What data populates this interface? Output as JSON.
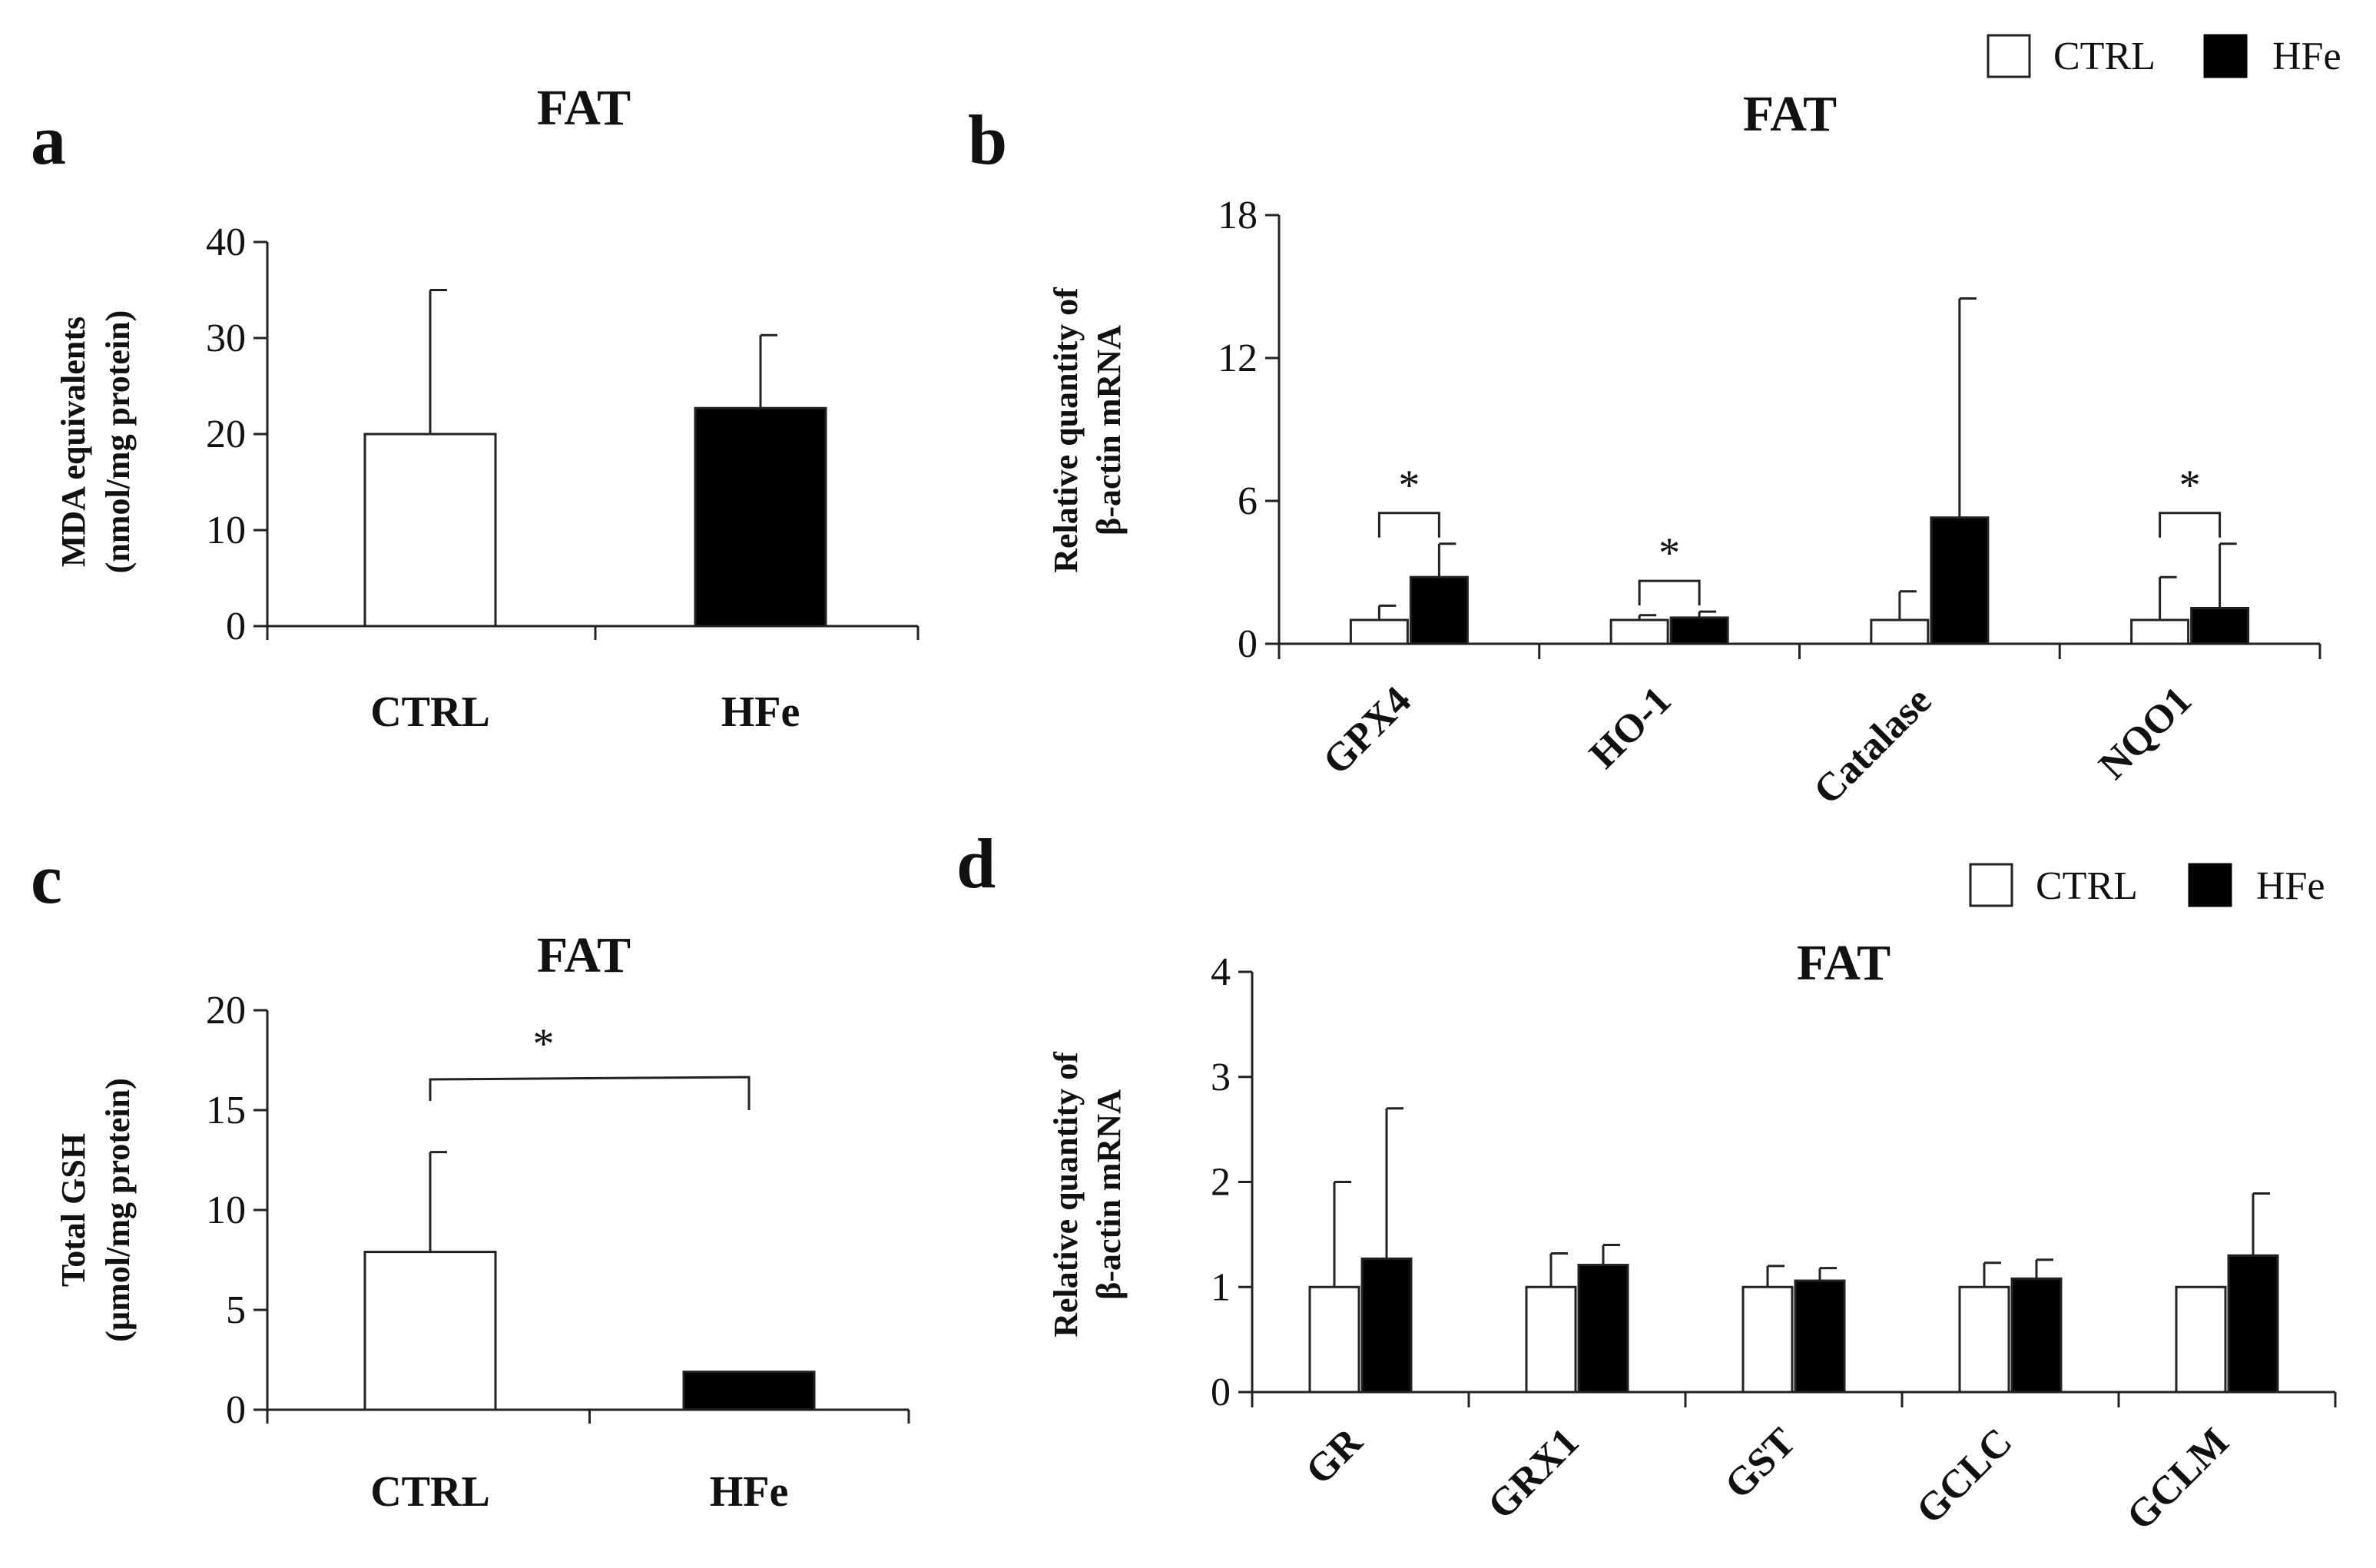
{
  "legend": {
    "ctrl": "CTRL",
    "hfe": "HFe"
  },
  "colors": {
    "ctrl": "#ffffff",
    "hfe": "#000000",
    "stroke": "#222222"
  },
  "chart_data": [
    {
      "id": "a",
      "panel_label": "a",
      "type": "bar",
      "title": "FAT",
      "ylabel_line1": "MDA equivalents",
      "ylabel_line2": "(nmol/mg protein)",
      "categories": [
        "CTRL",
        "HFe"
      ],
      "values": [
        20,
        22.7
      ],
      "errors": [
        15,
        7.6
      ],
      "colors": [
        "ctrl",
        "hfe"
      ],
      "ylim": [
        0,
        40
      ],
      "yticks": [
        0,
        10,
        20,
        30,
        40
      ],
      "significance": []
    },
    {
      "id": "b",
      "panel_label": "b",
      "type": "bar",
      "title": "FAT",
      "ylabel_line1": "Relative quantity of",
      "ylabel_line2": "β-actin mRNA",
      "categories": [
        "GPX4",
        "HO-1",
        "Catalase",
        "NQO1"
      ],
      "series": [
        {
          "name": "CTRL",
          "values": [
            1,
            1,
            1,
            1
          ],
          "errors": [
            0.6,
            0.2,
            1.2,
            1.8
          ]
        },
        {
          "name": "HFe",
          "values": [
            2.8,
            1.1,
            5.3,
            1.5
          ],
          "errors": [
            1.4,
            0.25,
            9.2,
            2.7
          ]
        }
      ],
      "ylim": [
        0,
        18
      ],
      "yticks": [
        0,
        6,
        12,
        18
      ],
      "significance": [
        {
          "category": 0,
          "label": "*"
        },
        {
          "category": 1,
          "label": "*"
        },
        {
          "category": 3,
          "label": "*"
        }
      ]
    },
    {
      "id": "c",
      "panel_label": "c",
      "type": "bar",
      "title": "FAT",
      "ylabel_line1": "Total GSH",
      "ylabel_line2": "(µmol/mg protein)",
      "categories": [
        "CTRL",
        "HFe"
      ],
      "values": [
        7.9,
        1.9
      ],
      "errors": [
        5,
        0
      ],
      "colors": [
        "ctrl",
        "hfe"
      ],
      "ylim": [
        0,
        20
      ],
      "yticks": [
        0,
        5,
        10,
        15,
        20
      ],
      "significance": [
        {
          "from": 0,
          "to": 1,
          "label": "*"
        }
      ]
    },
    {
      "id": "d",
      "panel_label": "d",
      "type": "bar",
      "title": "FAT",
      "ylabel_line1": "Relative quantity of",
      "ylabel_line2": "β-actin mRNA",
      "categories": [
        "GR",
        "GRX1",
        "GST",
        "GCLC",
        "GCLM"
      ],
      "series": [
        {
          "name": "CTRL",
          "values": [
            1,
            1,
            1,
            1,
            1
          ],
          "errors": [
            1,
            0.32,
            0.2,
            0.23,
            0
          ]
        },
        {
          "name": "HFe",
          "values": [
            1.27,
            1.21,
            1.06,
            1.08,
            1.3
          ],
          "errors": [
            1.43,
            0.19,
            0.12,
            0.18,
            0.59
          ]
        }
      ],
      "ylim": [
        0,
        4
      ],
      "yticks": [
        0,
        1,
        2,
        3,
        4
      ],
      "significance": []
    }
  ]
}
